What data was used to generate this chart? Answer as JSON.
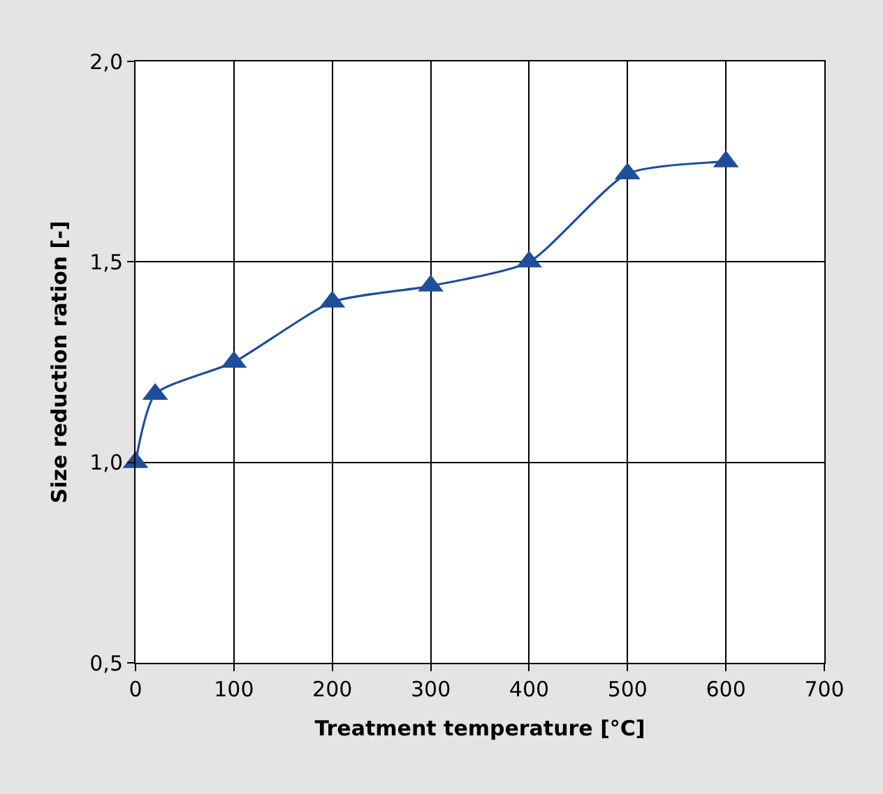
{
  "chart_data": {
    "type": "line",
    "xlabel": "Treatment temperature [°C]",
    "ylabel": "Size reduction ration [-]",
    "x": [
      0,
      20,
      100,
      200,
      300,
      400,
      500,
      600
    ],
    "series": [
      {
        "color": "#1f4e9a",
        "values": [
          1.0,
          1.17,
          1.25,
          1.4,
          1.44,
          1.5,
          1.72,
          1.75
        ]
      }
    ],
    "xlim": [
      0,
      700
    ],
    "xticks": [
      0,
      100,
      200,
      300,
      400,
      500,
      600,
      700
    ],
    "ylim": [
      0.5,
      2.0
    ],
    "yticks": [
      {
        "value": 0.5,
        "label": "0,5"
      },
      {
        "value": 1.0,
        "label": "1,0"
      },
      {
        "value": 1.5,
        "label": "1,5"
      },
      {
        "value": 2.0,
        "label": "2,0"
      }
    ],
    "grid": true,
    "marker": "triangle",
    "line_style": "solid"
  }
}
